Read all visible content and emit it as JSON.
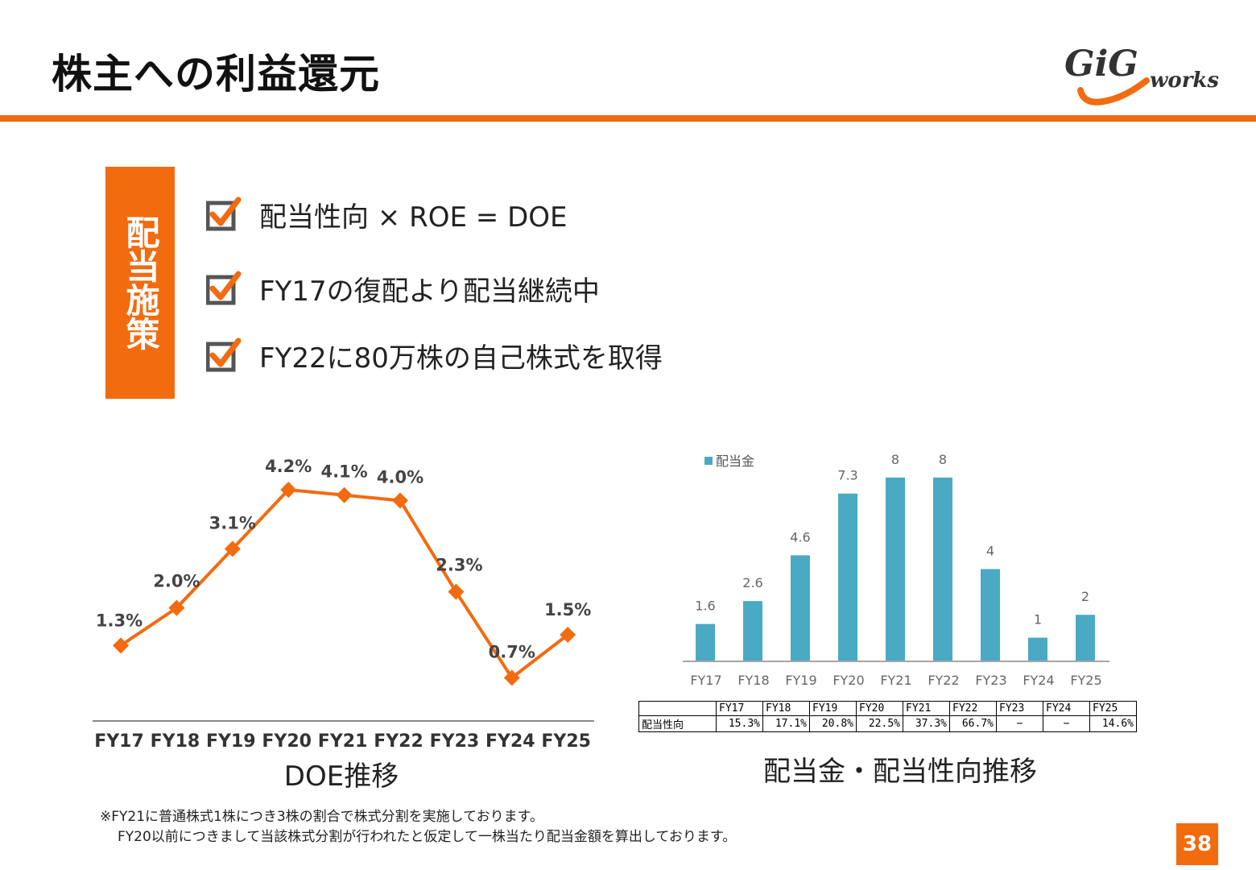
{
  "title": "株主への利益還元",
  "logo": {
    "text_main": "GiG",
    "text_sub": "works"
  },
  "colors": {
    "accent": "#f26b0f",
    "bar": "#4aaac4",
    "text": "#222222"
  },
  "policy": {
    "label": "配当施策",
    "items": [
      "配当性向 × ROE = DOE",
      "FY17の復配より配当継続中",
      "FY22に80万株の自己株式を取得"
    ]
  },
  "doe_chart": {
    "caption": "DOE推移"
  },
  "dividend_chart": {
    "caption": "配当金・配当性向推移"
  },
  "chart_data": [
    {
      "type": "line",
      "categories": [
        "FY17",
        "FY18",
        "FY19",
        "FY20",
        "FY21",
        "FY22",
        "FY23",
        "FY24",
        "FY25"
      ],
      "values": [
        1.3,
        2.0,
        3.1,
        4.2,
        4.1,
        4.0,
        2.3,
        0.7,
        1.5
      ],
      "data_labels": [
        "1.3%",
        "2.0%",
        "3.1%",
        "4.2%",
        "4.1%",
        "4.0%",
        "2.3%",
        "0.7%",
        "1.5%"
      ],
      "ylim": [
        0,
        4.5
      ],
      "grid": false
    },
    {
      "type": "bar",
      "categories": [
        "FY17",
        "FY18",
        "FY19",
        "FY20",
        "FY21",
        "FY22",
        "FY23",
        "FY24",
        "FY25"
      ],
      "series": [
        {
          "name": "配当金",
          "values": [
            1.6,
            2.6,
            4.6,
            7.3,
            8,
            8,
            4,
            1,
            2
          ]
        }
      ],
      "data_labels": [
        "1.6",
        "2.6",
        "4.6",
        "7.3",
        "8",
        "8",
        "4",
        "1",
        "2"
      ],
      "legend": "top-left",
      "ylim": [
        0,
        10
      ],
      "grid": false
    },
    {
      "type": "table",
      "columns": [
        "FY17",
        "FY18",
        "FY19",
        "FY20",
        "FY21",
        "FY22",
        "FY23",
        "FY24",
        "FY25"
      ],
      "rows": [
        {
          "label": "配当性向",
          "values": [
            "15.3%",
            "17.1%",
            "20.8%",
            "22.5%",
            "37.3%",
            "66.7%",
            "−",
            "−",
            "14.6%"
          ]
        }
      ]
    }
  ],
  "footnote": {
    "line1": "※FY21に普通株式1株につき3株の割合で株式分割を実施しております。",
    "line2": "FY20以前につきまして当該株式分割が行われたと仮定して一株当たり配当金額を算出しております。"
  },
  "page_number": "38"
}
